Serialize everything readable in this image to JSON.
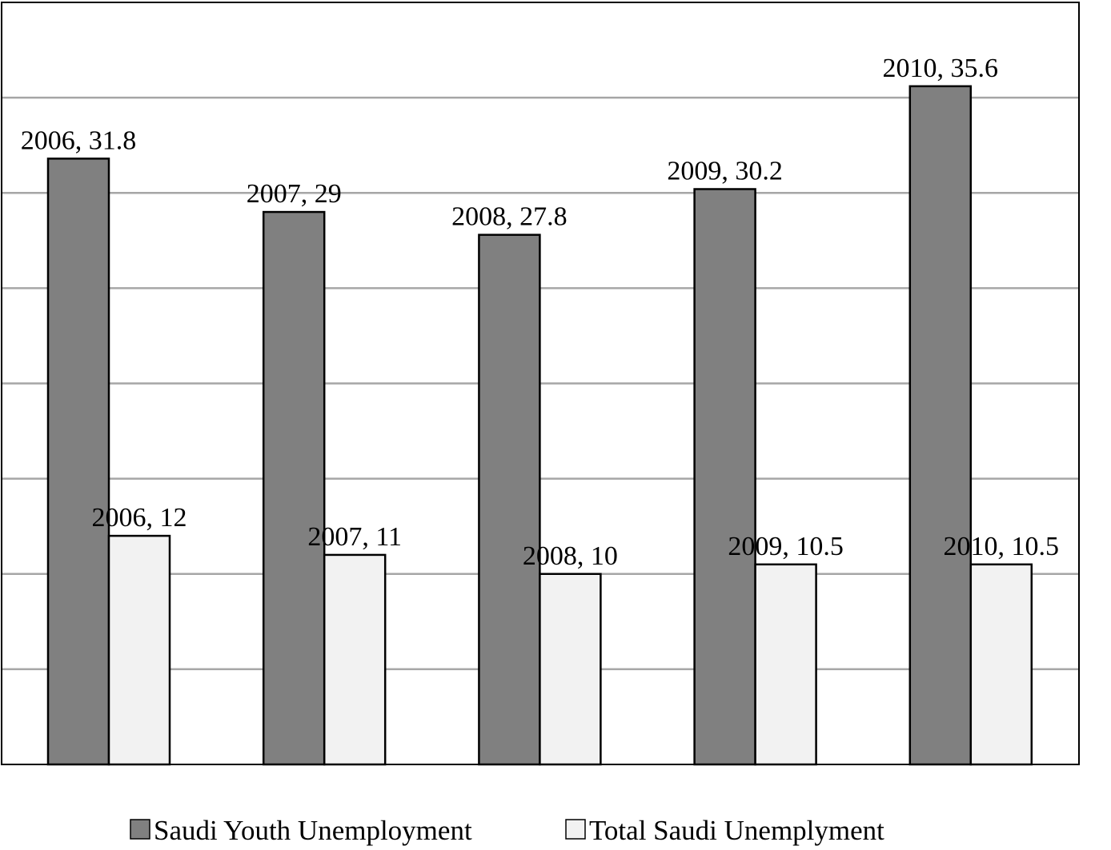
{
  "chart_data": {
    "type": "bar",
    "categories": [
      "2006",
      "2007",
      "2008",
      "2009",
      "2010"
    ],
    "series": [
      {
        "name": "Saudi Youth Unemployment",
        "values": [
          31.8,
          29,
          27.8,
          30.2,
          35.6
        ],
        "labels": [
          "2006, 31.8",
          "2007, 29",
          "2008, 27.8",
          "2009, 30.2",
          "2010, 35.6"
        ],
        "color": "#808080"
      },
      {
        "name": "Total Saudi Unemplyment",
        "values": [
          12,
          11,
          10,
          10.5,
          10.5
        ],
        "labels": [
          "2006, 12",
          "2007, 11",
          "2008, 10",
          "2009, 10.5",
          "2010, 10.5"
        ],
        "color": "#f2f2f2"
      }
    ],
    "ylim": [
      0,
      40
    ],
    "grid": true,
    "legend_position": "bottom"
  }
}
